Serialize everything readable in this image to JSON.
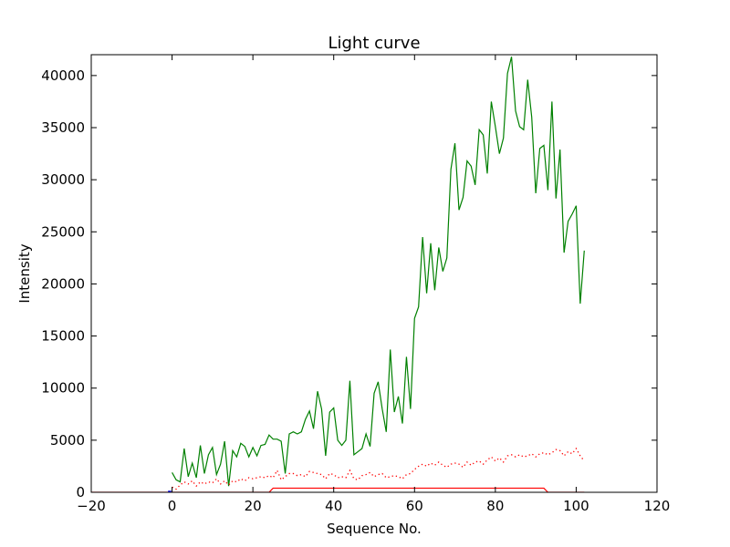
{
  "chart_data": {
    "type": "line",
    "title": "Light curve",
    "xlabel": "Sequence No.",
    "ylabel": "Intensity",
    "xlim": [
      -20,
      120
    ],
    "ylim": [
      0,
      42000
    ],
    "xticks": [
      -20,
      0,
      20,
      40,
      60,
      80,
      100,
      120
    ],
    "yticks": [
      0,
      5000,
      10000,
      15000,
      20000,
      25000,
      30000,
      35000,
      40000
    ],
    "xtick_labels": [
      "−20",
      "0",
      "20",
      "40",
      "60",
      "80",
      "100",
      "120"
    ],
    "ytick_labels": [
      "0",
      "5000",
      "10000",
      "15000",
      "20000",
      "25000",
      "30000",
      "35000",
      "40000"
    ],
    "grid": false,
    "series": [
      {
        "color": "#008000",
        "style": "solid",
        "x": [
          0,
          1,
          2,
          3,
          4,
          5,
          6,
          7,
          8,
          9,
          10,
          11,
          12,
          13,
          14,
          15,
          16,
          17,
          18,
          19,
          20,
          21,
          22,
          23,
          24,
          25,
          26,
          27,
          28,
          29,
          30,
          31,
          32,
          33,
          34,
          35,
          36,
          37,
          38,
          39,
          40,
          41,
          42,
          43,
          44,
          45,
          46,
          47,
          48,
          49,
          50,
          51,
          52,
          53,
          54,
          55,
          56,
          57,
          58,
          59,
          60,
          61,
          62,
          63,
          64,
          65,
          66,
          67,
          68,
          69,
          70,
          71,
          72,
          73,
          74,
          75,
          76,
          77,
          78,
          79,
          80,
          81,
          82,
          83,
          84,
          85,
          86,
          87,
          88,
          89,
          90,
          91,
          92,
          93,
          94,
          95,
          96,
          97,
          98,
          99,
          100,
          101,
          102
        ],
        "y": [
          1900,
          1200,
          1000,
          4200,
          1500,
          2800,
          1400,
          4500,
          1800,
          3600,
          4300,
          1700,
          2700,
          4900,
          600,
          4000,
          3400,
          4700,
          4400,
          3400,
          4300,
          3500,
          4500,
          4600,
          5500,
          5100,
          5100,
          4900,
          1800,
          5600,
          5800,
          5600,
          5800,
          7000,
          7800,
          6100,
          9700,
          8000,
          3500,
          7700,
          8100,
          5000,
          4500,
          5000,
          10700,
          3600,
          3900,
          4200,
          5600,
          4400,
          9500,
          10600,
          8000,
          5800,
          13700,
          7700,
          9200,
          6600,
          13000,
          8000,
          16700,
          17800,
          24500,
          19100,
          23900,
          19400,
          23500,
          21200,
          22500,
          31000,
          33500,
          27100,
          28300,
          31800,
          31300,
          29500,
          34800,
          34300,
          30600,
          37500,
          35100,
          32500,
          34000,
          40200,
          41800,
          36600,
          35100,
          34800,
          39600,
          36000,
          28700,
          33000,
          33300,
          29000,
          37500,
          28200,
          32900,
          23000,
          26000,
          26700,
          27500,
          18100,
          23200
        ]
      },
      {
        "color": "#ff0000",
        "style": "dotted",
        "x": [
          0,
          1,
          2,
          3,
          4,
          5,
          6,
          7,
          8,
          9,
          10,
          11,
          12,
          13,
          14,
          15,
          16,
          17,
          18,
          19,
          20,
          21,
          22,
          23,
          24,
          25,
          26,
          27,
          28,
          29,
          30,
          31,
          32,
          33,
          34,
          35,
          36,
          37,
          38,
          39,
          40,
          41,
          42,
          43,
          44,
          45,
          46,
          47,
          48,
          49,
          50,
          51,
          52,
          53,
          54,
          55,
          56,
          57,
          58,
          59,
          60,
          61,
          62,
          63,
          64,
          65,
          66,
          67,
          68,
          69,
          70,
          71,
          72,
          73,
          74,
          75,
          76,
          77,
          78,
          79,
          80,
          81,
          82,
          83,
          84,
          85,
          86,
          87,
          88,
          89,
          90,
          91,
          92,
          93,
          94,
          95,
          96,
          97,
          98,
          99,
          100,
          101,
          102
        ],
        "y": [
          500,
          300,
          700,
          1000,
          800,
          1100,
          600,
          1000,
          800,
          1000,
          900,
          1300,
          800,
          1100,
          700,
          1100,
          1000,
          1300,
          1100,
          1400,
          1300,
          1400,
          1500,
          1400,
          1600,
          1400,
          2100,
          1200,
          1500,
          1800,
          1800,
          1600,
          1700,
          1500,
          2000,
          1900,
          1800,
          1700,
          1300,
          1800,
          1700,
          1400,
          1500,
          1400,
          2100,
          1300,
          1200,
          1600,
          1700,
          1900,
          1500,
          1700,
          1800,
          1400,
          1500,
          1600,
          1500,
          1300,
          1700,
          1800,
          2200,
          2500,
          2700,
          2500,
          2800,
          2600,
          2900,
          2600,
          2400,
          2700,
          2800,
          2700,
          2400,
          2900,
          2600,
          2900,
          3000,
          2700,
          3100,
          3400,
          3000,
          3300,
          2900,
          3500,
          3600,
          3400,
          3600,
          3400,
          3500,
          3700,
          3400,
          3700,
          3800,
          3600,
          3800,
          4100,
          4000,
          3500,
          3900,
          3700,
          4200,
          3500,
          3000
        ]
      },
      {
        "color": "#ff0000",
        "style": "solid",
        "x": [
          -20,
          24,
          25,
          92,
          93,
          102
        ],
        "y": [
          0,
          0,
          400,
          400,
          0,
          0
        ]
      },
      {
        "color": "#0000ff",
        "style": "solid",
        "x": [
          -1,
          -0.2
        ],
        "y": [
          100,
          100
        ]
      }
    ]
  }
}
